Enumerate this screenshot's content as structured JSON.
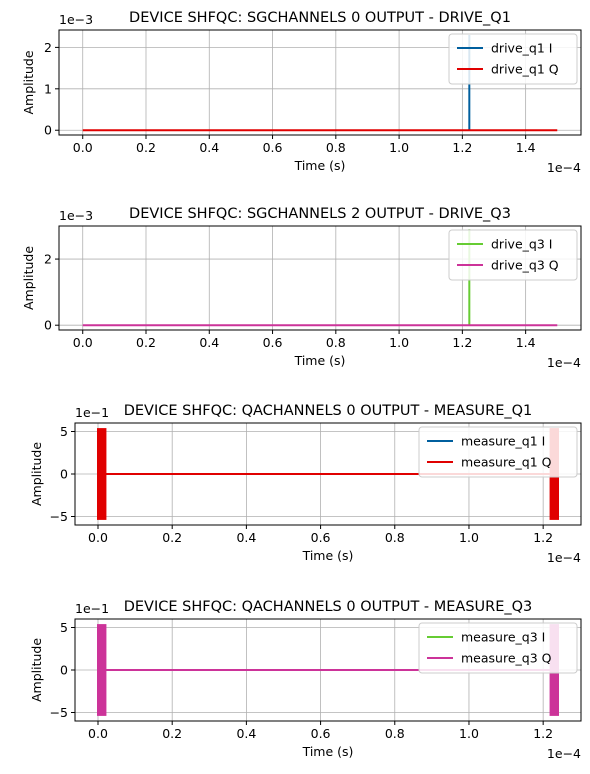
{
  "chart_data": [
    {
      "type": "line",
      "title": "DEVICE SHFQC: SGCHANNELS 0 OUTPUT - DRIVE_Q1",
      "xlabel": "Time (s)",
      "ylabel": "Amplitude",
      "x_multiplier_label": "1e−4",
      "y_multiplier_label": "1e−3",
      "xlim": [
        -0.075,
        1.575
      ],
      "ylim": [
        -0.115,
        2.42
      ],
      "x_ticks": [
        0.0,
        0.2,
        0.4,
        0.6,
        0.8,
        1.0,
        1.2,
        1.4
      ],
      "x_tick_labels": [
        "0.0",
        "0.2",
        "0.4",
        "0.6",
        "0.8",
        "1.0",
        "1.2",
        "1.4"
      ],
      "y_ticks": [
        0,
        1,
        2
      ],
      "y_tick_labels": [
        "0",
        "1",
        "2"
      ],
      "grid": true,
      "legend_position": "top-right",
      "series": [
        {
          "name": "drive_q1 I",
          "color": "#005f9e",
          "kind": "spike",
          "baseline": 0,
          "spike_at": 1.222,
          "spike_value": 2.3
        },
        {
          "name": "drive_q1 Q",
          "color": "#e00000",
          "kind": "flat",
          "value": 0,
          "x_range": [
            0.0,
            1.5
          ]
        }
      ]
    },
    {
      "type": "line",
      "title": "DEVICE SHFQC: SGCHANNELS 2 OUTPUT - DRIVE_Q3",
      "xlabel": "Time (s)",
      "ylabel": "Amplitude",
      "x_multiplier_label": "1e−4",
      "y_multiplier_label": "1e−3",
      "xlim": [
        -0.075,
        1.575
      ],
      "ylim": [
        -0.145,
        3.0
      ],
      "x_ticks": [
        0.0,
        0.2,
        0.4,
        0.6,
        0.8,
        1.0,
        1.2,
        1.4
      ],
      "x_tick_labels": [
        "0.0",
        "0.2",
        "0.4",
        "0.6",
        "0.8",
        "1.0",
        "1.2",
        "1.4"
      ],
      "y_ticks": [
        0,
        2
      ],
      "y_tick_labels": [
        "0",
        "2"
      ],
      "grid": true,
      "legend_position": "top-right",
      "series": [
        {
          "name": "drive_q3 I",
          "color": "#66cc33",
          "kind": "spike",
          "baseline": 0,
          "spike_at": 1.222,
          "spike_value": 2.9
        },
        {
          "name": "drive_q3 Q",
          "color": "#cc3399",
          "kind": "flat",
          "value": 0,
          "x_range": [
            0.0,
            1.5
          ]
        }
      ]
    },
    {
      "type": "line",
      "title": "DEVICE SHFQC: QACHANNELS 0 OUTPUT - MEASURE_Q1",
      "xlabel": "Time (s)",
      "ylabel": "Amplitude",
      "x_multiplier_label": "1e−4",
      "y_multiplier_label": "1e−1",
      "xlim": [
        -0.062,
        1.302
      ],
      "ylim": [
        -6.0,
        6.0
      ],
      "x_ticks": [
        0.0,
        0.2,
        0.4,
        0.6,
        0.8,
        1.0,
        1.2
      ],
      "x_tick_labels": [
        "0.0",
        "0.2",
        "0.4",
        "0.6",
        "0.8",
        "1.0",
        "1.2"
      ],
      "y_ticks": [
        -5,
        0,
        5
      ],
      "y_tick_labels": [
        "−5",
        "0",
        "5"
      ],
      "grid": true,
      "legend_position": "top-right",
      "series": [
        {
          "name": "measure_q1 I",
          "color": "#005f9e",
          "kind": "flat",
          "value": 0,
          "x_range": [
            0.0,
            1.24
          ]
        },
        {
          "name": "measure_q1 Q",
          "color": "#e00000",
          "kind": "bursts",
          "value": 0,
          "x_range": [
            0.0,
            1.24
          ],
          "amplitude": 5.4,
          "bursts": [
            [
              0.0,
              0.02
            ],
            [
              1.22,
              1.24
            ]
          ]
        }
      ]
    },
    {
      "type": "line",
      "title": "DEVICE SHFQC: QACHANNELS 0 OUTPUT - MEASURE_Q3",
      "xlabel": "Time (s)",
      "ylabel": "Amplitude",
      "x_multiplier_label": "1e−4",
      "y_multiplier_label": "1e−1",
      "xlim": [
        -0.062,
        1.302
      ],
      "ylim": [
        -6.0,
        6.0
      ],
      "x_ticks": [
        0.0,
        0.2,
        0.4,
        0.6,
        0.8,
        1.0,
        1.2
      ],
      "x_tick_labels": [
        "0.0",
        "0.2",
        "0.4",
        "0.6",
        "0.8",
        "1.0",
        "1.2"
      ],
      "y_ticks": [
        -5,
        0,
        5
      ],
      "y_tick_labels": [
        "−5",
        "0",
        "5"
      ],
      "grid": true,
      "legend_position": "top-right",
      "series": [
        {
          "name": "measure_q3 I",
          "color": "#66cc33",
          "kind": "flat",
          "value": 0,
          "x_range": [
            0.0,
            1.24
          ]
        },
        {
          "name": "measure_q3 Q",
          "color": "#cc3399",
          "kind": "bursts",
          "value": 0,
          "x_range": [
            0.0,
            1.24
          ],
          "amplitude": 5.4,
          "bursts": [
            [
              0.0,
              0.02
            ],
            [
              1.22,
              1.24
            ]
          ]
        }
      ]
    }
  ]
}
